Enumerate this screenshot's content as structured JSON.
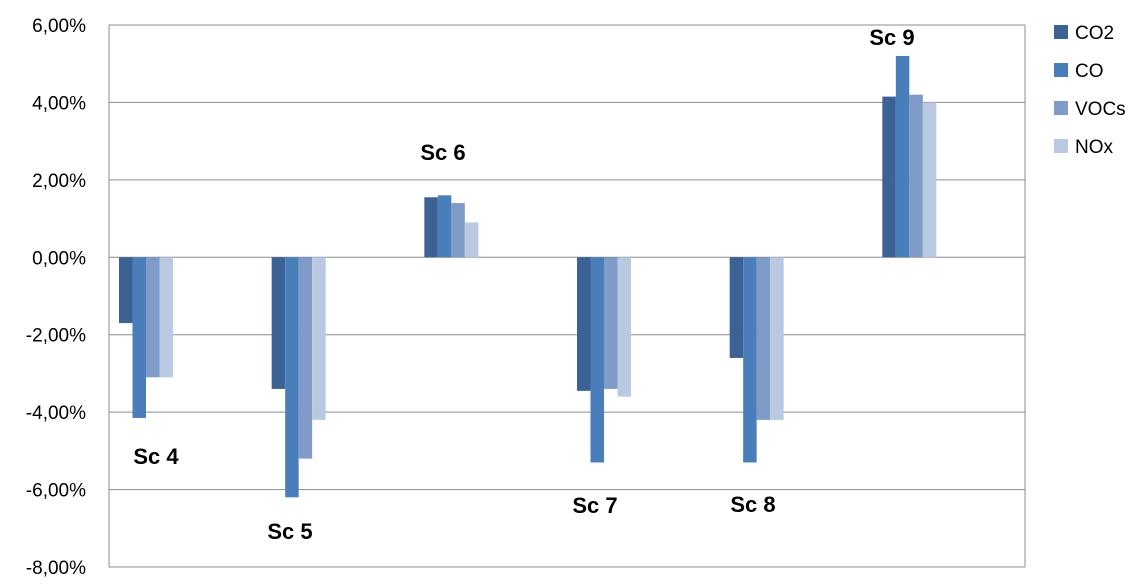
{
  "chart_data": {
    "type": "bar",
    "categories": [
      "Sc 4",
      "Sc 5",
      "Sc 6",
      "Sc 7",
      "Sc 8",
      "Sc 9"
    ],
    "series": [
      {
        "name": "CO2",
        "color": "#3C6194",
        "values": [
          -1.7,
          -3.4,
          1.55,
          -3.45,
          -2.6,
          4.15
        ]
      },
      {
        "name": "CO",
        "color": "#4A7EBB",
        "values": [
          -4.15,
          -6.2,
          1.6,
          -5.3,
          -5.3,
          5.2
        ]
      },
      {
        "name": "VOCs",
        "color": "#7F9CC9",
        "values": [
          -3.1,
          -5.2,
          1.4,
          -3.4,
          -4.2,
          4.2
        ]
      },
      {
        "name": "NOx",
        "color": "#B9C9E2",
        "values": [
          -3.1,
          -4.2,
          0.9,
          -3.6,
          -4.2,
          4.0
        ]
      }
    ],
    "ylim": [
      -8,
      6
    ],
    "yticks": [
      "6,00%",
      "4,00%",
      "2,00%",
      "0,00%",
      "-2,00%",
      "-4,00%",
      "-6,00%",
      "-8,00%"
    ],
    "scenario_labels": [
      "Sc 4",
      "Sc 5",
      "Sc 6",
      "Sc 7",
      "Sc 8",
      "Sc 9"
    ],
    "grid": true,
    "legend": "right",
    "title": "",
    "xlabel": "",
    "ylabel": ""
  }
}
